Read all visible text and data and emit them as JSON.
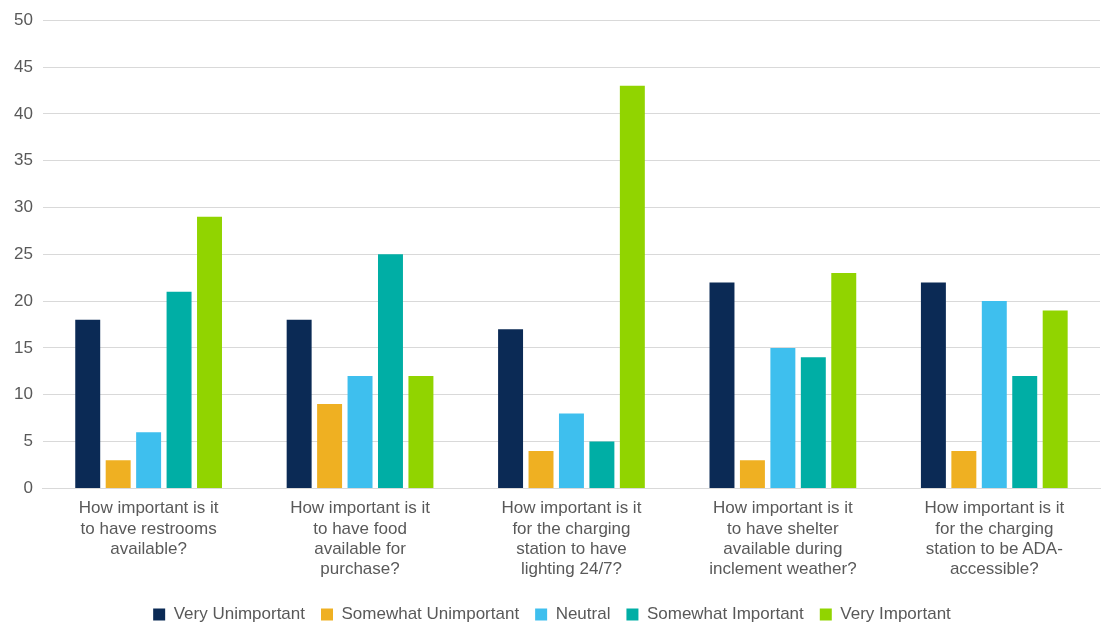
{
  "chart_data": {
    "type": "bar",
    "categories": [
      "How important is it to have restrooms available?",
      "How important is it to have food available for purchase?",
      "How important is it for the charging station to have lighting 24/7?",
      "How important is it to have shelter available during inclement weather?",
      "How important is it for the charging station to be ADA-accessible?"
    ],
    "series": [
      {
        "name": "Very Unimportant",
        "color": "#0b2a55",
        "values": [
          18,
          18,
          17,
          22,
          22
        ]
      },
      {
        "name": "Somewhat Unimportant",
        "color": "#efb022",
        "values": [
          3,
          9,
          4,
          3,
          4
        ]
      },
      {
        "name": "Neutral",
        "color": "#3ebfee",
        "values": [
          6,
          12,
          8,
          15,
          20
        ]
      },
      {
        "name": "Somewhat Important",
        "color": "#00aea5",
        "values": [
          21,
          25,
          5,
          14,
          12
        ]
      },
      {
        "name": "Very Important",
        "color": "#91d400",
        "values": [
          29,
          12,
          43,
          23,
          19
        ]
      }
    ],
    "ylim": [
      0,
      50
    ],
    "yticks": [
      0,
      5,
      10,
      15,
      20,
      25,
      30,
      35,
      40,
      45,
      50
    ],
    "grid": "y",
    "legend": "bottom"
  }
}
